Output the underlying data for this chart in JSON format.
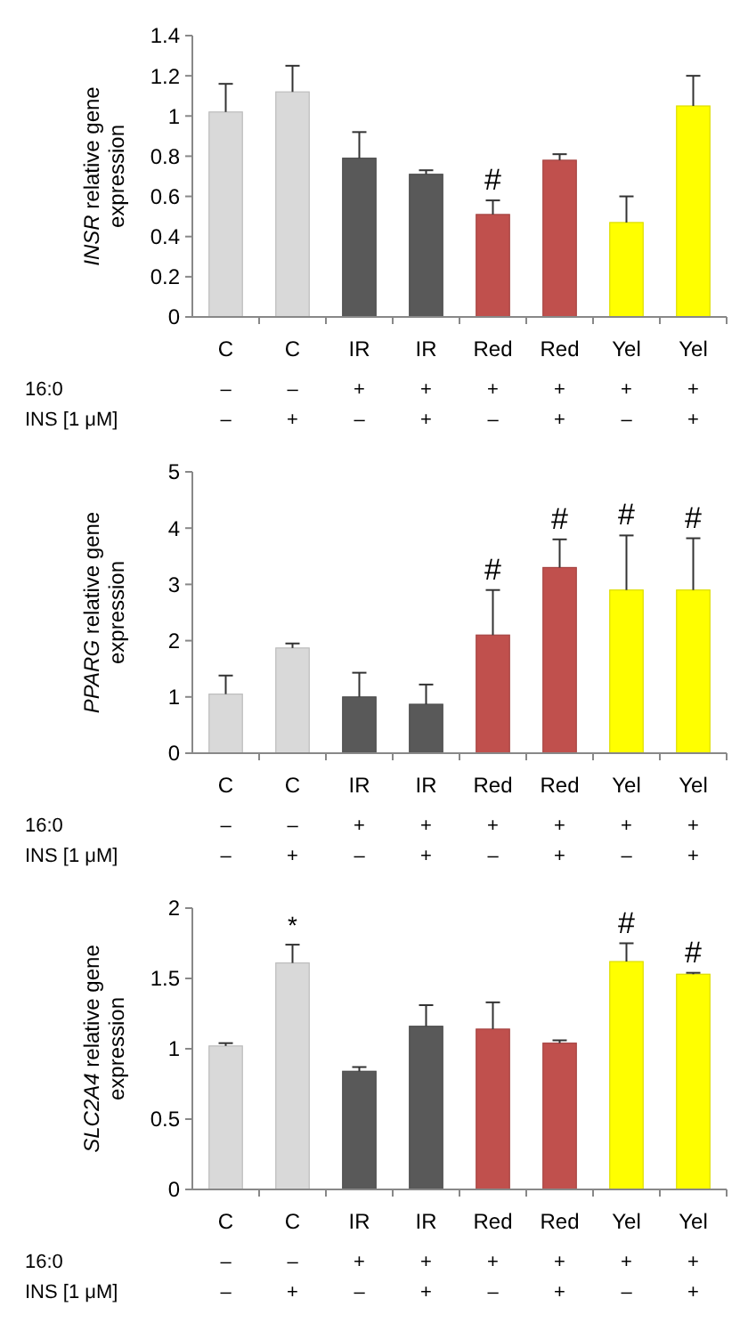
{
  "chart_data": [
    {
      "type": "bar",
      "ylabel": "INSR relative gene expression",
      "categories": [
        "C\n–\n–",
        "C\n–\n+",
        "IR\n+\n–",
        "IR\n+\n+",
        "Red\n+\n–",
        "Red\n+\n+",
        "Yel\n+\n–",
        "Yel\n+\n+"
      ],
      "values": [
        1.02,
        1.12,
        0.79,
        0.71,
        0.51,
        0.78,
        0.47,
        1.05
      ],
      "errors": [
        0.14,
        0.13,
        0.13,
        0.02,
        0.07,
        0.03,
        0.13,
        0.15
      ],
      "colors": [
        "#d9d9d9",
        "#d9d9d9",
        "#595959",
        "#595959",
        "#c0504d",
        "#c0504d",
        "#ffff00",
        "#ffff00"
      ],
      "ylim": [
        0,
        1.4
      ],
      "yticks": [
        0,
        0.2,
        0.4,
        0.6,
        0.8,
        1,
        1.2,
        1.4
      ],
      "grid": false,
      "annotations": [
        "16:0",
        "INS [1 μM]",
        {
          "text": "#",
          "x": "Red\n+\n–",
          "y": 0.51
        }
      ]
    },
    {
      "type": "bar",
      "ylabel": "PPARG relative gene expression",
      "categories": [
        "C\n–\n–",
        "C\n–\n+",
        "IR\n+\n–",
        "IR\n+\n+",
        "Red\n+\n–",
        "Red\n+\n+",
        "Yel\n+\n–",
        "Yel\n+\n+"
      ],
      "values": [
        1.05,
        1.87,
        1.0,
        0.87,
        2.1,
        3.3,
        2.9,
        2.9
      ],
      "errors": [
        0.33,
        0.08,
        0.43,
        0.35,
        0.8,
        0.5,
        0.97,
        0.92
      ],
      "colors": [
        "#d9d9d9",
        "#d9d9d9",
        "#595959",
        "#595959",
        "#c0504d",
        "#c0504d",
        "#ffff00",
        "#ffff00"
      ],
      "ylim": [
        0,
        5
      ],
      "yticks": [
        0,
        1,
        2,
        3,
        4,
        5
      ],
      "grid": false,
      "annotations": [
        "16:0",
        "INS [1 μM]",
        {
          "text": "#",
          "x": "Red\n+\n–",
          "y": 2.1
        },
        {
          "text": "#",
          "x": "Red\n+\n+",
          "y": 3.3
        },
        {
          "text": "#",
          "x": "Yel\n+\n–",
          "y": 2.9
        },
        {
          "text": "#",
          "x": "Yel\n+\n+",
          "y": 2.9
        }
      ]
    },
    {
      "type": "bar",
      "ylabel": "SLC2A4 relative gene expression",
      "categories": [
        "C\n–\n–",
        "C\n–\n+",
        "IR\n+\n–",
        "IR\n+\n+",
        "Red\n+\n–",
        "Red\n+\n+",
        "Yel\n+\n–",
        "Yel\n+\n+"
      ],
      "values": [
        1.02,
        1.61,
        0.84,
        1.16,
        1.14,
        1.04,
        1.62,
        1.53
      ],
      "errors": [
        0.02,
        0.13,
        0.03,
        0.15,
        0.19,
        0.02,
        0.13,
        0.01
      ],
      "colors": [
        "#d9d9d9",
        "#d9d9d9",
        "#595959",
        "#595959",
        "#c0504d",
        "#c0504d",
        "#ffff00",
        "#ffff00"
      ],
      "ylim": [
        0,
        2
      ],
      "yticks": [
        0,
        0.5,
        1,
        1.5,
        2
      ],
      "grid": false,
      "annotations": [
        "16:0",
        "INS [1 μM]",
        {
          "text": "*",
          "x": "C\n–\n+",
          "y": 1.61
        },
        {
          "text": "#",
          "x": "Yel\n+\n–",
          "y": 1.62
        },
        {
          "text": "#",
          "x": "Yel\n+\n+",
          "y": 1.53
        }
      ]
    }
  ]
}
